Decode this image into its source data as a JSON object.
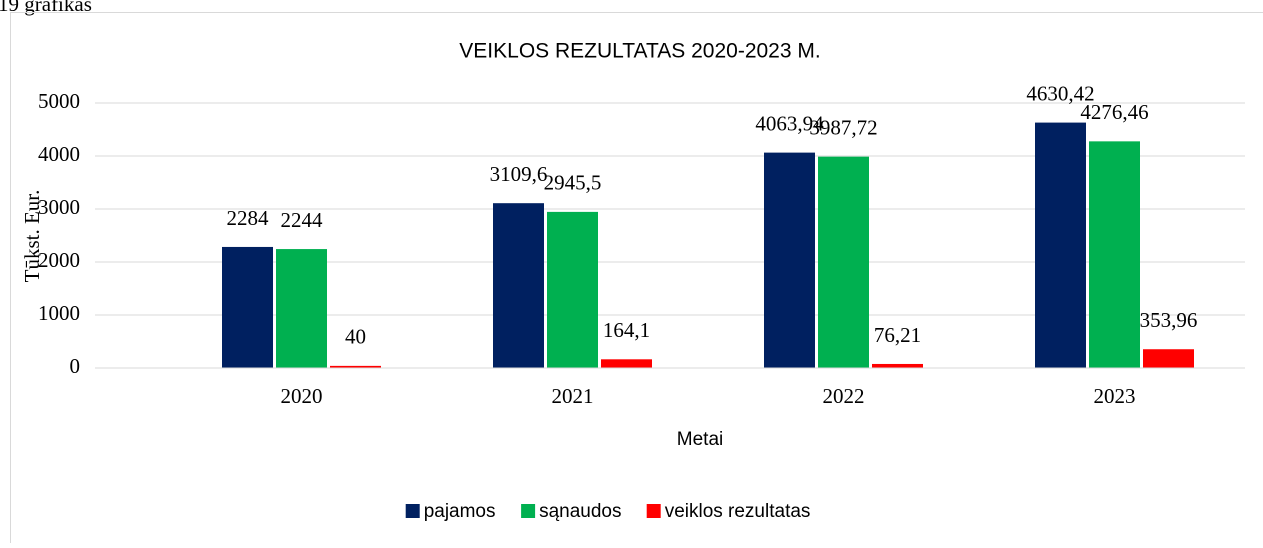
{
  "caption": "19 grafikas",
  "chart_data": {
    "type": "bar",
    "title": "VEIKLOS REZULTATAS 2020-2023 M.",
    "x_label": "Metai",
    "y_label": "Tūkst. Eur.",
    "categories": [
      "2020",
      "2021",
      "2022",
      "2023"
    ],
    "series": [
      {
        "name": "pajamos",
        "color": "#002060",
        "values": [
          2284,
          3109.6,
          4063.94,
          4630.42
        ],
        "value_labels": [
          "2284",
          "3109,6",
          "4063,94",
          "4630,42"
        ]
      },
      {
        "name": "sąnaudos",
        "color": "#00b050",
        "values": [
          2244,
          2945.5,
          3987.72,
          4276.46
        ],
        "value_labels": [
          "2244",
          "2945,5",
          "3987,72",
          "4276,46"
        ]
      },
      {
        "name": "veiklos rezultatas",
        "color": "#ff0000",
        "values": [
          40,
          164.1,
          76.21,
          353.96
        ],
        "value_labels": [
          "40",
          "164,1",
          "76,21",
          "353,96"
        ]
      }
    ],
    "ylim": [
      0,
      5000
    ],
    "yticks": [
      0,
      1000,
      2000,
      3000,
      4000,
      5000
    ],
    "grid": true,
    "legend": "bottom"
  }
}
